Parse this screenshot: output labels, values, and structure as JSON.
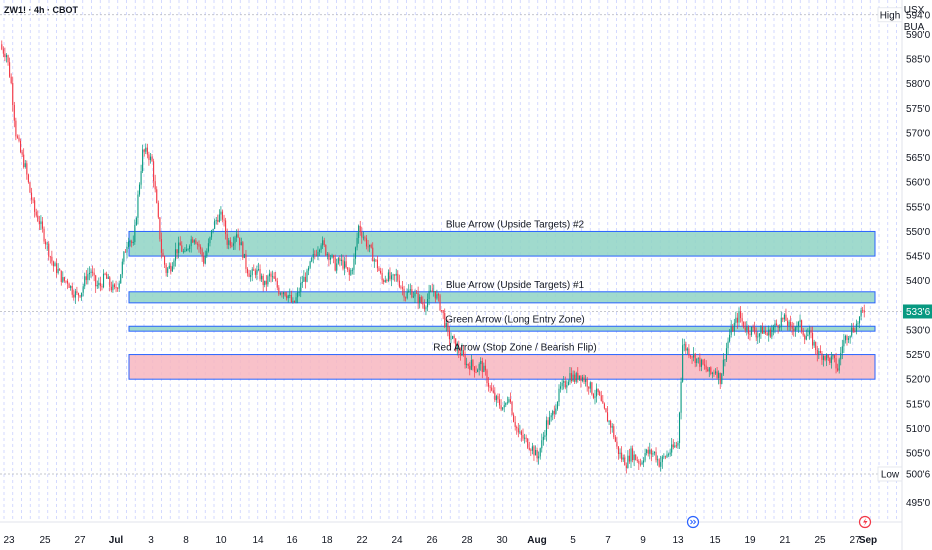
{
  "header": {
    "symbol": "ZW1! · 4h · CBOT",
    "currency": "USX",
    "unit": "BUA"
  },
  "colors": {
    "up": "#089981",
    "down": "#f23645",
    "zone_blue_fill": "#8fd3c4",
    "zone_blue_stroke": "#2962ff",
    "zone_red_fill": "#f7b6c0",
    "grid": "#c9d0ff",
    "price_tag": "#089981"
  },
  "chart_data": {
    "type": "candlestick",
    "ylim": [
      491,
      597
    ],
    "y_ticks": [
      {
        "value": 590,
        "label": "590'0"
      },
      {
        "value": 585,
        "label": "585'0"
      },
      {
        "value": 580,
        "label": "580'0"
      },
      {
        "value": 575,
        "label": "575'0"
      },
      {
        "value": 570,
        "label": "570'0"
      },
      {
        "value": 565,
        "label": "565'0"
      },
      {
        "value": 560,
        "label": "560'0"
      },
      {
        "value": 555,
        "label": "555'0"
      },
      {
        "value": 550,
        "label": "550'0"
      },
      {
        "value": 545,
        "label": "545'0"
      },
      {
        "value": 540,
        "label": "540'0"
      },
      {
        "value": 530,
        "label": "530'0"
      },
      {
        "value": 525,
        "label": "525'0"
      },
      {
        "value": 520,
        "label": "520'0"
      },
      {
        "value": 515,
        "label": "515'0"
      },
      {
        "value": 510,
        "label": "510'0"
      },
      {
        "value": 505,
        "label": "505'0"
      },
      {
        "value": 495,
        "label": "495'0"
      }
    ],
    "x_labels": [
      "23",
      "25",
      "27",
      "Jul",
      "3",
      "8",
      "10",
      "14",
      "16",
      "18",
      "22",
      "24",
      "26",
      "28",
      "30",
      "Aug",
      "5",
      "7",
      "9",
      "13",
      "15",
      "19",
      "21",
      "25",
      "27",
      "Sep"
    ],
    "high": {
      "label": "High",
      "value_text": "594'0",
      "value": 594
    },
    "low": {
      "label": "Low",
      "value_text": "500'6",
      "value": 500.75
    },
    "last": {
      "value_text": "533'6",
      "value": 533.75
    },
    "zones": [
      {
        "label": "Blue Arrow (Upside Targets) #2",
        "top": 550,
        "bottom": 545,
        "kind": "blue"
      },
      {
        "label": "Blue Arrow (Upside Targets) #1",
        "top": 537.75,
        "bottom": 535.5,
        "kind": "blue"
      },
      {
        "label": "Green Arrow (Long Entry Zone)",
        "top": 530.75,
        "bottom": 529.75,
        "kind": "blue"
      },
      {
        "label": "Red Arrow (Stop Zone / Bearish Flip)",
        "top": 525,
        "bottom": 520,
        "kind": "red"
      }
    ],
    "anchors": [
      [
        0,
        587
      ],
      [
        3,
        586
      ],
      [
        6,
        580
      ],
      [
        9,
        570
      ],
      [
        12,
        566
      ],
      [
        15,
        563
      ],
      [
        18,
        558
      ],
      [
        21,
        554
      ],
      [
        24,
        552
      ],
      [
        27,
        549
      ],
      [
        30,
        546
      ],
      [
        33,
        543
      ],
      [
        36,
        542
      ],
      [
        39,
        540
      ],
      [
        42,
        540
      ],
      [
        45,
        538
      ],
      [
        48,
        537
      ],
      [
        51,
        538
      ],
      [
        54,
        541
      ],
      [
        57,
        542
      ],
      [
        60,
        539
      ],
      [
        63,
        539
      ],
      [
        66,
        541
      ],
      [
        69,
        539
      ],
      [
        72,
        538
      ],
      [
        75,
        540
      ],
      [
        78,
        545
      ],
      [
        81,
        549
      ],
      [
        84,
        547
      ],
      [
        87,
        557
      ],
      [
        90,
        566
      ],
      [
        93,
        566
      ],
      [
        96,
        564
      ],
      [
        99,
        555
      ],
      [
        102,
        546
      ],
      [
        105,
        542
      ],
      [
        108,
        543
      ],
      [
        111,
        546
      ],
      [
        114,
        547
      ],
      [
        117,
        545
      ],
      [
        120,
        548
      ],
      [
        123,
        549
      ],
      [
        126,
        547
      ],
      [
        129,
        544
      ],
      [
        132,
        547
      ],
      [
        135,
        551
      ],
      [
        138,
        553
      ],
      [
        141,
        553
      ],
      [
        144,
        548
      ],
      [
        147,
        548
      ],
      [
        150,
        550
      ],
      [
        153,
        547
      ],
      [
        156,
        543
      ],
      [
        159,
        541
      ],
      [
        162,
        542
      ],
      [
        165,
        541
      ],
      [
        168,
        539
      ],
      [
        171,
        541
      ],
      [
        174,
        540
      ],
      [
        177,
        538
      ],
      [
        180,
        538
      ],
      [
        183,
        537
      ],
      [
        186,
        535
      ],
      [
        189,
        537
      ],
      [
        192,
        540
      ],
      [
        195,
        541
      ],
      [
        198,
        544
      ],
      [
        201,
        546
      ],
      [
        204,
        548
      ],
      [
        207,
        546
      ],
      [
        210,
        545
      ],
      [
        213,
        543
      ],
      [
        216,
        544
      ],
      [
        219,
        543
      ],
      [
        222,
        541
      ],
      [
        225,
        544
      ],
      [
        228,
        551
      ],
      [
        231,
        549
      ],
      [
        234,
        547
      ],
      [
        237,
        545
      ],
      [
        240,
        543
      ],
      [
        243,
        540
      ],
      [
        246,
        541
      ],
      [
        249,
        540
      ],
      [
        252,
        541
      ],
      [
        255,
        539
      ],
      [
        258,
        537
      ],
      [
        261,
        538
      ],
      [
        264,
        537
      ],
      [
        267,
        536
      ],
      [
        270,
        535
      ],
      [
        273,
        537
      ],
      [
        276,
        538
      ],
      [
        279,
        536
      ],
      [
        282,
        533
      ],
      [
        285,
        529
      ],
      [
        288,
        528
      ],
      [
        291,
        526
      ],
      [
        294,
        525
      ],
      [
        297,
        523
      ],
      [
        300,
        523
      ],
      [
        303,
        522
      ],
      [
        306,
        523
      ],
      [
        309,
        521
      ],
      [
        312,
        518
      ],
      [
        315,
        516
      ],
      [
        318,
        515
      ],
      [
        321,
        514
      ],
      [
        324,
        517
      ],
      [
        327,
        512
      ],
      [
        330,
        509
      ],
      [
        333,
        508
      ],
      [
        336,
        507
      ],
      [
        339,
        506
      ],
      [
        342,
        504
      ],
      [
        345,
        507
      ],
      [
        348,
        511
      ],
      [
        351,
        512
      ],
      [
        354,
        515
      ],
      [
        357,
        518
      ],
      [
        360,
        519
      ],
      [
        363,
        521
      ],
      [
        366,
        520
      ],
      [
        369,
        521
      ],
      [
        372,
        520
      ],
      [
        375,
        519
      ],
      [
        378,
        517
      ],
      [
        381,
        517
      ],
      [
        384,
        514
      ],
      [
        387,
        512
      ],
      [
        390,
        510
      ],
      [
        393,
        506
      ],
      [
        396,
        504
      ],
      [
        399,
        503
      ],
      [
        402,
        505
      ],
      [
        405,
        504
      ],
      [
        408,
        503
      ],
      [
        411,
        505
      ],
      [
        414,
        505
      ],
      [
        417,
        505
      ],
      [
        420,
        503
      ],
      [
        423,
        504
      ],
      [
        426,
        505
      ],
      [
        429,
        506
      ],
      [
        432,
        507
      ],
      [
        435,
        527
      ],
      [
        438,
        526
      ],
      [
        441,
        525
      ],
      [
        444,
        524
      ],
      [
        447,
        523
      ],
      [
        450,
        522
      ],
      [
        453,
        521
      ],
      [
        456,
        522
      ],
      [
        459,
        520
      ],
      [
        462,
        525
      ],
      [
        465,
        529
      ],
      [
        468,
        531
      ],
      [
        471,
        533
      ],
      [
        474,
        531
      ],
      [
        477,
        530
      ],
      [
        480,
        530
      ],
      [
        483,
        529
      ],
      [
        486,
        530
      ],
      [
        489,
        529
      ],
      [
        492,
        530
      ],
      [
        495,
        531
      ],
      [
        498,
        532
      ],
      [
        501,
        532
      ],
      [
        504,
        530
      ],
      [
        507,
        531
      ],
      [
        510,
        531
      ],
      [
        513,
        529
      ],
      [
        516,
        529
      ],
      [
        519,
        527
      ],
      [
        522,
        525
      ],
      [
        525,
        525
      ],
      [
        528,
        524
      ],
      [
        531,
        524
      ],
      [
        534,
        522
      ],
      [
        537,
        527
      ],
      [
        540,
        529
      ],
      [
        543,
        530
      ],
      [
        546,
        531
      ],
      [
        549,
        533
      ],
      [
        551,
        534
      ]
    ]
  }
}
